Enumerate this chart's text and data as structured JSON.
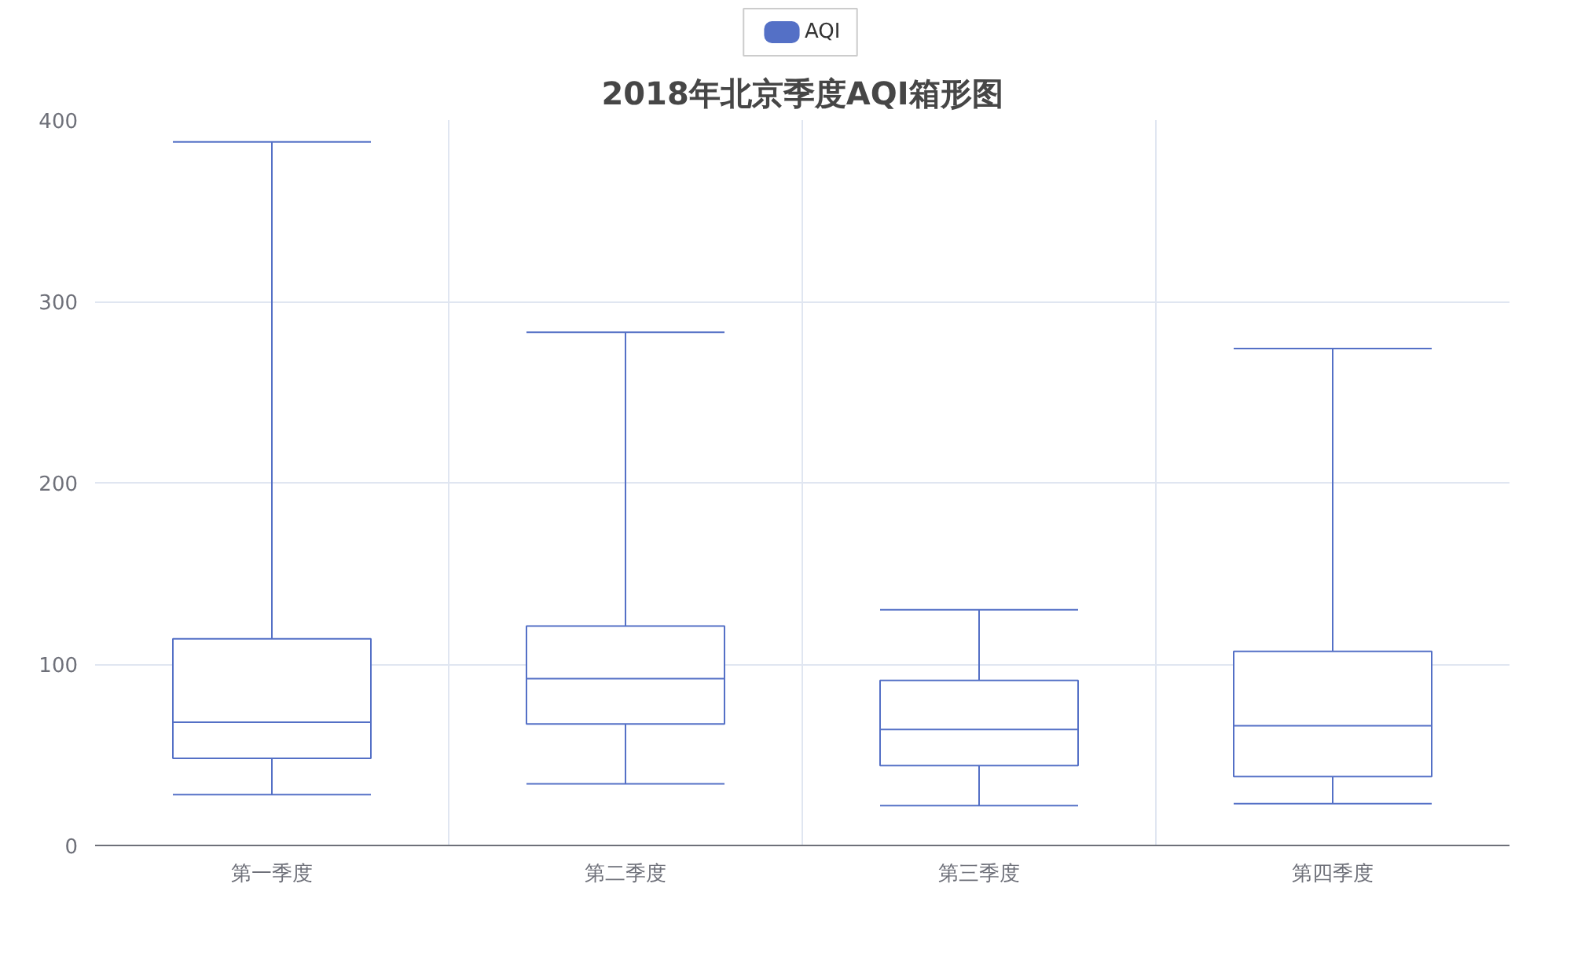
{
  "chart_data": {
    "type": "box",
    "title": "2018年北京季度AQI箱形图",
    "categories": [
      "第一季度",
      "第二季度",
      "第三季度",
      "第四季度"
    ],
    "series": [
      {
        "name": "AQI",
        "color": "#5470c6",
        "boxes": [
          {
            "low": 28,
            "q1": 48,
            "median": 68,
            "q3": 114,
            "high": 388
          },
          {
            "low": 34,
            "q1": 67,
            "median": 92,
            "q3": 121,
            "high": 283
          },
          {
            "low": 22,
            "q1": 44,
            "median": 64,
            "q3": 91,
            "high": 130
          },
          {
            "low": 23,
            "q1": 38,
            "median": 66,
            "q3": 107,
            "high": 274
          }
        ]
      }
    ],
    "ylim": [
      0,
      400
    ],
    "yticks": [
      0,
      100,
      200,
      300,
      400
    ],
    "grid": true,
    "legend": "top"
  }
}
